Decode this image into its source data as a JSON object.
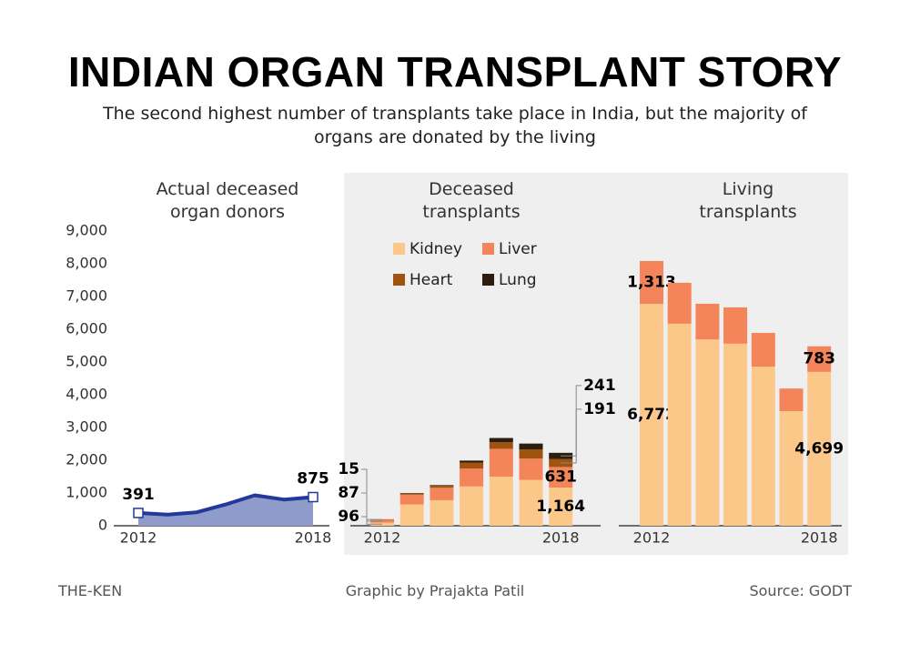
{
  "title": "INDIAN ORGAN TRANSPLANT STORY",
  "subtitle": "The second highest number of transplants take place in India, but the majority of organs are donated by the living",
  "credits": {
    "publisher": "THE-KEN",
    "graphic": "Graphic by Prajakta Patil",
    "source": "Source: GODT"
  },
  "chart_data": [
    {
      "type": "area",
      "title": "Actual deceased organ donors",
      "categories": [
        "2012",
        null,
        null,
        null,
        null,
        null,
        "2018"
      ],
      "values": [
        391,
        340,
        410,
        650,
        930,
        800,
        875
      ],
      "value_labels": [
        "391",
        null,
        null,
        null,
        null,
        null,
        "875"
      ],
      "color": "#22389a",
      "fill": "#8e9bcb",
      "ylim": [
        0,
        9000
      ],
      "yticks": [
        0,
        {
          "value": 1000,
          "label": "1,000"
        },
        {
          "value": 2000,
          "label": "2,000"
        },
        {
          "value": 3000,
          "label": "3,000"
        },
        {
          "value": 4000,
          "label": "4,000"
        },
        {
          "value": 5000,
          "label": "5,000"
        },
        {
          "value": 6000,
          "label": "6,000"
        },
        {
          "value": 7000,
          "label": "7,000"
        },
        {
          "value": 8000,
          "label": "8,000"
        },
        {
          "value": 9000,
          "label": "9,000"
        }
      ]
    },
    {
      "type": "stacked_bar",
      "title": "Deceased transplants",
      "categories": [
        "2012",
        null,
        null,
        null,
        null,
        null,
        "2018"
      ],
      "ylim": [
        0,
        9000
      ],
      "legend": "top-left",
      "series": [
        {
          "name": "Kidney",
          "color": "#fcc88a",
          "values": [
            96,
            650,
            780,
            1200,
            1500,
            1400,
            1164
          ],
          "value_labels": [
            "96",
            null,
            null,
            null,
            null,
            null,
            "1,164"
          ]
        },
        {
          "name": "Liver",
          "color": "#f4845a",
          "values": [
            87,
            300,
            380,
            550,
            850,
            650,
            631
          ],
          "value_labels": [
            "87",
            null,
            null,
            null,
            null,
            null,
            "631"
          ]
        },
        {
          "name": "Heart",
          "color": "#a0520f",
          "values": [
            15,
            40,
            60,
            180,
            200,
            280,
            241
          ],
          "value_labels": [
            "15",
            null,
            null,
            null,
            null,
            null,
            "241"
          ]
        },
        {
          "name": "Lung",
          "color": "#2b1e0e",
          "values": [
            0,
            10,
            20,
            60,
            130,
            180,
            191
          ],
          "value_labels": [
            null,
            null,
            null,
            null,
            null,
            null,
            "191"
          ]
        }
      ]
    },
    {
      "type": "stacked_bar",
      "title": "Living transplants",
      "categories": [
        "2012",
        null,
        null,
        null,
        null,
        null,
        "2018"
      ],
      "ylim": [
        0,
        9000
      ],
      "series": [
        {
          "color": "#fcc88a",
          "values": [
            6772,
            6170,
            5690,
            5560,
            4860,
            3500,
            4699
          ],
          "value_labels": [
            "6,772",
            null,
            null,
            null,
            null,
            null,
            "4,699"
          ]
        },
        {
          "color": "#f4845a",
          "values": [
            1313,
            1250,
            1090,
            1110,
            1030,
            690,
            783
          ],
          "value_labels": [
            "1,313",
            null,
            null,
            null,
            null,
            null,
            "783"
          ]
        }
      ]
    }
  ]
}
